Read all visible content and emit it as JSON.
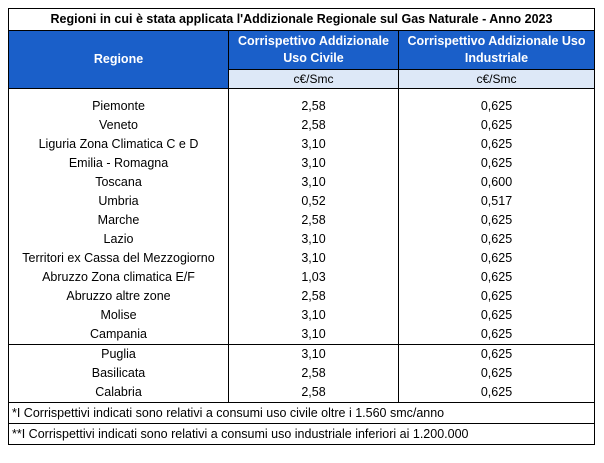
{
  "title": "Regioni in cui è stata applicata l'Addizionale Regionale sul Gas Naturale - Anno 2023",
  "headers": {
    "region": "Regione",
    "civil": "Corrispettivo Addizionale Uso Civile",
    "industrial": "Corrispettivo Addizionale Uso Industriale",
    "civil_unit": "c€/Smc",
    "industrial_unit": "c€/Smc"
  },
  "colors": {
    "header_bg": "#1a5fc9",
    "header_text": "#ffffff",
    "unit_bg": "#dde8f7"
  },
  "rows": [
    {
      "region": "Piemonte",
      "civil": "2,58",
      "industrial": "0,625"
    },
    {
      "region": "Veneto",
      "civil": "2,58",
      "industrial": "0,625"
    },
    {
      "region": "Liguria Zona Climatica C e D",
      "civil": "3,10",
      "industrial": "0,625"
    },
    {
      "region": "Emilia - Romagna",
      "civil": "3,10",
      "industrial": "0,625"
    },
    {
      "region": "Toscana",
      "civil": "3,10",
      "industrial": "0,600"
    },
    {
      "region": "Umbria",
      "civil": "0,52",
      "industrial": "0,517"
    },
    {
      "region": "Marche",
      "civil": "2,58",
      "industrial": "0,625"
    },
    {
      "region": "Lazio",
      "civil": "3,10",
      "industrial": "0,625"
    },
    {
      "region": "Territori ex Cassa del Mezzogiorno",
      "civil": "3,10",
      "industrial": "0,625"
    },
    {
      "region": "Abruzzo Zona climatica E/F",
      "civil": "1,03",
      "industrial": "0,625"
    },
    {
      "region": "Abruzzo altre zone",
      "civil": "2,58",
      "industrial": "0,625"
    },
    {
      "region": "Molise",
      "civil": "3,10",
      "industrial": "0,625"
    },
    {
      "region": "Campania",
      "civil": "3,10",
      "industrial": "0,625"
    },
    {
      "region": "Puglia",
      "civil": "3,10",
      "industrial": "0,625"
    },
    {
      "region": "Basilicata",
      "civil": "2,58",
      "industrial": "0,625"
    },
    {
      "region": "Calabria",
      "civil": "2,58",
      "industrial": "0,625"
    }
  ],
  "notes": [
    "*I Corrispettivi indicati sono relativi a consumi uso civile oltre i 1.560 smc/anno",
    "**I Corrispettivi indicati sono relativi a consumi uso industriale inferiori ai 1.200.000"
  ]
}
